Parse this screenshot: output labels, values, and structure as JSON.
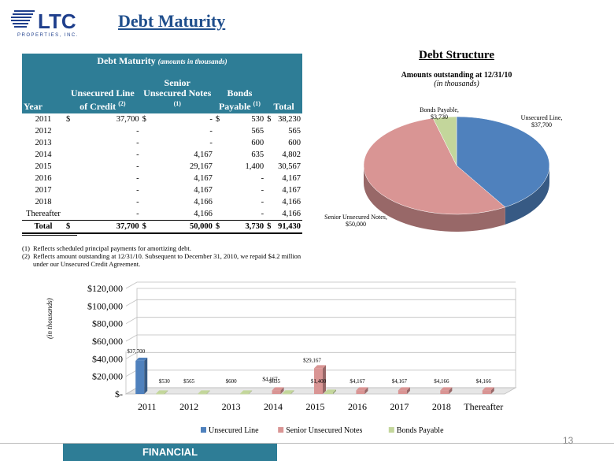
{
  "header": {
    "logo_text": "LTC",
    "logo_subtext": "PROPERTIES, INC.",
    "title": "Debt Maturity"
  },
  "table": {
    "banner_title": "Debt Maturity",
    "banner_sub": "(amounts in thousands)",
    "columns": {
      "year": "Year",
      "line": "Unsecured Line of Credit",
      "line_note": "(2)",
      "notes": "Senior Unsecured Notes",
      "notes_note": "(1)",
      "bonds": "Bonds Payable",
      "bonds_note": "(1)",
      "total": "Total"
    },
    "rows": [
      {
        "year": "2011",
        "line_cur": "$",
        "line": "37,700",
        "notes_cur": "$",
        "notes": "-",
        "bonds_cur": "$",
        "bonds": "530",
        "total_cur": "$",
        "total": "38,230"
      },
      {
        "year": "2012",
        "line_cur": "",
        "line": "-",
        "notes_cur": "",
        "notes": "-",
        "bonds_cur": "",
        "bonds": "565",
        "total_cur": "",
        "total": "565"
      },
      {
        "year": "2013",
        "line_cur": "",
        "line": "-",
        "notes_cur": "",
        "notes": "-",
        "bonds_cur": "",
        "bonds": "600",
        "total_cur": "",
        "total": "600"
      },
      {
        "year": "2014",
        "line_cur": "",
        "line": "-",
        "notes_cur": "",
        "notes": "4,167",
        "bonds_cur": "",
        "bonds": "635",
        "total_cur": "",
        "total": "4,802"
      },
      {
        "year": "2015",
        "line_cur": "",
        "line": "-",
        "notes_cur": "",
        "notes": "29,167",
        "bonds_cur": "",
        "bonds": "1,400",
        "total_cur": "",
        "total": "30,567"
      },
      {
        "year": "2016",
        "line_cur": "",
        "line": "-",
        "notes_cur": "",
        "notes": "4,167",
        "bonds_cur": "",
        "bonds": "-",
        "total_cur": "",
        "total": "4,167"
      },
      {
        "year": "2017",
        "line_cur": "",
        "line": "-",
        "notes_cur": "",
        "notes": "4,167",
        "bonds_cur": "",
        "bonds": "-",
        "total_cur": "",
        "total": "4,167"
      },
      {
        "year": "2018",
        "line_cur": "",
        "line": "-",
        "notes_cur": "",
        "notes": "4,166",
        "bonds_cur": "",
        "bonds": "-",
        "total_cur": "",
        "total": "4,166"
      },
      {
        "year": "Thereafter",
        "line_cur": "",
        "line": "-",
        "notes_cur": "",
        "notes": "4,166",
        "bonds_cur": "",
        "bonds": "-",
        "total_cur": "",
        "total": "4,166"
      }
    ],
    "total_row": {
      "year": "Total",
      "line_cur": "$",
      "line": "37,700",
      "notes_cur": "$",
      "notes": "50,000",
      "bonds_cur": "$",
      "bonds": "3,730",
      "total_cur": "$",
      "total": "91,430"
    }
  },
  "footnotes": [
    {
      "mark": "(1)",
      "text": "Reflects scheduled principal payments for amortizing debt."
    },
    {
      "mark": "(2)",
      "text": "Reflects amount outstanding at 12/31/10.  Subsequent to December 31, 2010, we repaid $4.2 million under our Unsecured Credit Agreement."
    }
  ],
  "structure": {
    "title": "Debt Structure",
    "subtitle": "Amounts outstanding at 12/31/10",
    "subtitle2": "(in thousands)"
  },
  "chart_data": [
    {
      "type": "pie",
      "title": "Debt Structure",
      "subtitle": "Amounts outstanding at 12/31/10",
      "labels": [
        "Unsecured Line",
        "Senior Unsecured Notes",
        "Bonds Payable"
      ],
      "data_labels": [
        "Unsecured Line, $37,700",
        "Senior Unsecured Notes, $50,000",
        "Bonds Payable, $3,730"
      ],
      "values": [
        37700,
        50000,
        3730
      ],
      "colors": [
        "#4f81bd",
        "#d99594",
        "#c3d69b"
      ]
    },
    {
      "type": "bar",
      "categories": [
        "2011",
        "2012",
        "2013",
        "2014",
        "2015",
        "2016",
        "2017",
        "2018",
        "Thereafter"
      ],
      "series": [
        {
          "name": "Unsecured Line",
          "values": [
            37700,
            0,
            0,
            0,
            0,
            0,
            0,
            0,
            0
          ],
          "color": "#4f81bd"
        },
        {
          "name": "Senior Unsecured Notes",
          "values": [
            0,
            0,
            0,
            4167,
            29167,
            4167,
            4167,
            4166,
            4166
          ],
          "color": "#d99594"
        },
        {
          "name": "Bonds Payable",
          "values": [
            530,
            565,
            600,
            635,
            1400,
            0,
            0,
            0,
            0
          ],
          "color": "#c3d69b"
        }
      ],
      "data_labels": [
        {
          "category": "2011",
          "text": "$37,700"
        },
        {
          "category": "2011",
          "text": "$530"
        },
        {
          "category": "2012",
          "text": "$565"
        },
        {
          "category": "2013",
          "text": "$600"
        },
        {
          "category": "2014",
          "text": "$4,167"
        },
        {
          "category": "2014",
          "text": "$635"
        },
        {
          "category": "2015",
          "text": "$29,167"
        },
        {
          "category": "2015",
          "text": "$1,400"
        },
        {
          "category": "2016",
          "text": "$4,167"
        },
        {
          "category": "2017",
          "text": "$4,167"
        },
        {
          "category": "2018",
          "text": "$4,166"
        },
        {
          "category": "Thereafter",
          "text": "$4,166"
        }
      ],
      "ylabel": "(in thousands)",
      "yticks": [
        "$-",
        "$20,000",
        "$40,000",
        "$60,000",
        "$80,000",
        "$100,000",
        "$120,000"
      ],
      "ylim": [
        0,
        120000
      ],
      "grid": true,
      "legend": "bottom"
    }
  ],
  "footer": {
    "label": "FINANCIAL",
    "page_number": "13"
  }
}
